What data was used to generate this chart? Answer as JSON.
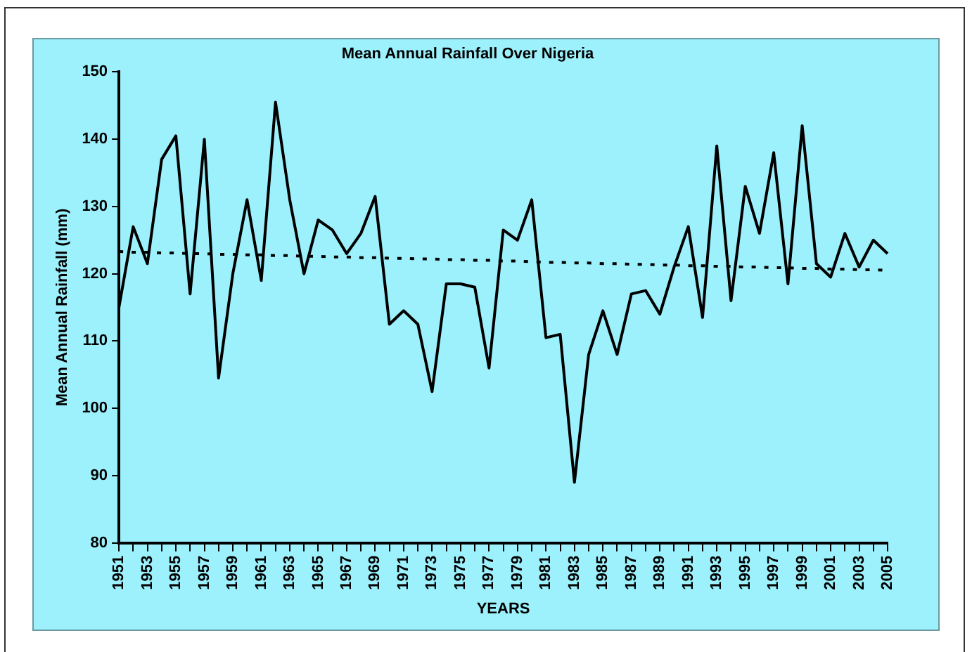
{
  "chart_data": {
    "type": "line",
    "title": "Mean Annual Rainfall Over Nigeria",
    "xlabel": "YEARS",
    "ylabel": "Mean Annual Rainfall (mm)",
    "categories": [
      "1951",
      null,
      "1953",
      null,
      "1955",
      null,
      "1957",
      null,
      "1959",
      null,
      "1961",
      null,
      "1963",
      null,
      "1965",
      null,
      "1967",
      null,
      "1969",
      null,
      "1971",
      null,
      "1973",
      null,
      "1975",
      null,
      "1977",
      null,
      "1979",
      null,
      "1981",
      null,
      "1983",
      null,
      "1985",
      null,
      "1987",
      null,
      "1989",
      null,
      "1991",
      null,
      "1993",
      null,
      "1995",
      null,
      "1997",
      null,
      "1999",
      null,
      "2001",
      null,
      "2003",
      null,
      "2005"
    ],
    "series": [
      {
        "color": "#000000",
        "line_style": "solid",
        "values": [
          115,
          127,
          121.5,
          137,
          140.5,
          117,
          140,
          104.5,
          120,
          131,
          119,
          145.5,
          131,
          120,
          128,
          126.5,
          123,
          126,
          131.5,
          112.5,
          114.5,
          112.5,
          102.5,
          118.5,
          118.5,
          118,
          106,
          126.5,
          125,
          131,
          110.5,
          111,
          89,
          108,
          114.5,
          108,
          117,
          117.5,
          114,
          121,
          127,
          113.5,
          139,
          116,
          133,
          126,
          138,
          118.5,
          142,
          121.5,
          119.5,
          126,
          121,
          125,
          123
        ]
      },
      {
        "color": "#000000",
        "line_style": "dotted",
        "values": [
          123.3,
          123.2,
          123.2,
          123.1,
          123.1,
          123.0,
          123.0,
          122.9,
          122.9,
          122.8,
          122.8,
          122.7,
          122.7,
          122.6,
          122.6,
          122.5,
          122.5,
          122.4,
          122.4,
          122.3,
          122.3,
          122.2,
          122.2,
          122.1,
          122.1,
          122.0,
          122.0,
          121.9,
          121.9,
          121.8,
          121.7,
          121.7,
          121.6,
          121.6,
          121.5,
          121.5,
          121.4,
          121.4,
          121.3,
          121.3,
          121.2,
          121.2,
          121.1,
          121.1,
          121.0,
          121.0,
          120.9,
          120.9,
          120.8,
          120.8,
          120.7,
          120.7,
          120.6,
          120.6,
          120.5
        ]
      }
    ],
    "ylim": [
      80,
      150
    ],
    "yticks": [
      80,
      90,
      100,
      110,
      120,
      130,
      140,
      150
    ],
    "grid": false,
    "legend": false,
    "marker": "none"
  }
}
